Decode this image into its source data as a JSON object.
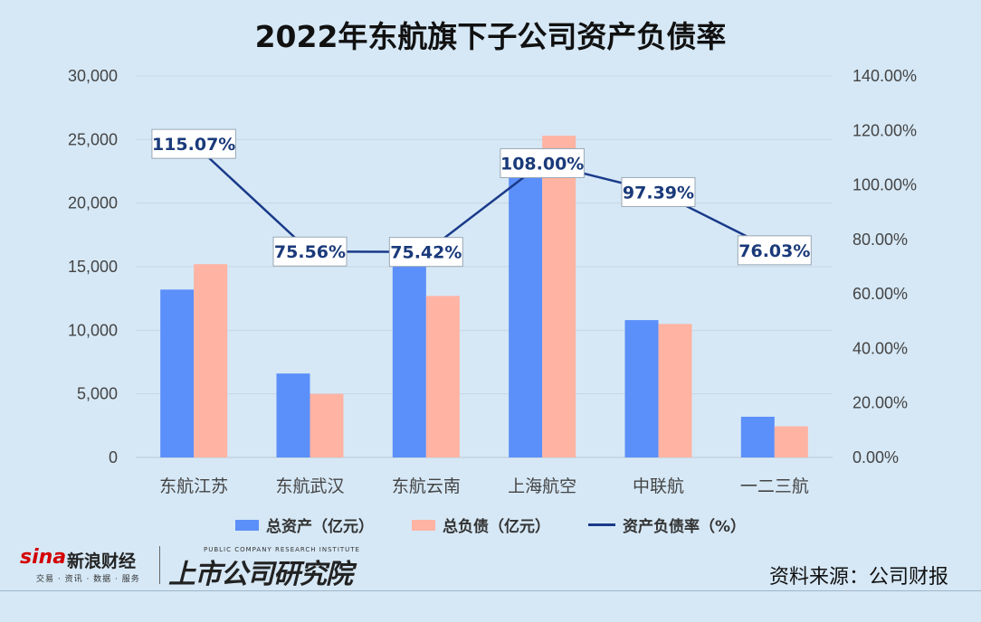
{
  "page": {
    "title": "2022年东航旗下子公司资产负债率",
    "source": "资料来源：公司财报",
    "logo_sina": "sina",
    "logo_sina_cn": "新浪财经",
    "logo_sina_sub": "交易 · 资讯 · 数据 · 服务",
    "logo_brand": "上市公司研究院",
    "logo_brand_en": "PUBLIC COMPANY RESEARCH INSTITUTE"
  },
  "chart_data": {
    "type": "bar",
    "categories": [
      "东航江苏",
      "东航武汉",
      "东航云南",
      "上海航空",
      "中联航",
      "一二三航"
    ],
    "series": [
      {
        "name": "总资产（亿元）",
        "type": "bar",
        "axis": "left",
        "color": "#5b8ff9",
        "values": [
          13200,
          6600,
          16800,
          22000,
          10800,
          3200
        ]
      },
      {
        "name": "总负债（亿元）",
        "type": "bar",
        "axis": "left",
        "color": "#ffb3a3",
        "values": [
          15200,
          5000,
          12700,
          25300,
          10500,
          2450
        ]
      },
      {
        "name": "资产负债率（%）",
        "type": "line",
        "axis": "right",
        "color": "#1a3a8a",
        "values": [
          115.07,
          75.56,
          75.42,
          108.0,
          97.39,
          76.03
        ],
        "labels": [
          "115.07%",
          "75.56%",
          "75.42%",
          "108.00%",
          "97.39%",
          "76.03%"
        ]
      }
    ],
    "y_left": {
      "min": 0,
      "max": 30000,
      "ticks": [
        "0",
        "5,000",
        "10,000",
        "15,000",
        "20,000",
        "25,000",
        "30,000"
      ]
    },
    "y_right": {
      "min": 0,
      "max": 140,
      "ticks": [
        "0.00%",
        "20.00%",
        "40.00%",
        "60.00%",
        "80.00%",
        "100.00%",
        "120.00%",
        "140.00%"
      ]
    },
    "grid": true,
    "legend": "bottom"
  }
}
